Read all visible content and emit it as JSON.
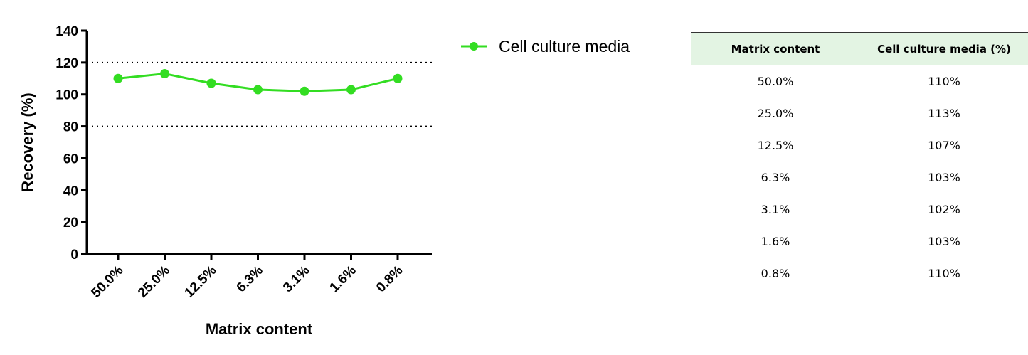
{
  "chart_data": {
    "type": "line",
    "categories": [
      "50.0%",
      "25.0%",
      "12.5%",
      "6.3%",
      "3.1%",
      "1.6%",
      "0.8%"
    ],
    "series": [
      {
        "name": "Cell culture media",
        "values": [
          110,
          113,
          107,
          103,
          102,
          103,
          110
        ],
        "color": "#33dd22"
      }
    ],
    "reference_lines": [
      80,
      120
    ],
    "xlabel": "Matrix content",
    "ylabel": "Recovery (%)",
    "ylim": [
      0,
      140
    ],
    "yticks": [
      0,
      20,
      40,
      60,
      80,
      100,
      120,
      140
    ],
    "legend_position": "right",
    "grid": false
  },
  "table": {
    "headers": [
      "Matrix content",
      "Cell culture media (%)"
    ],
    "rows": [
      [
        "50.0%",
        "110%"
      ],
      [
        "25.0%",
        "113%"
      ],
      [
        "12.5%",
        "107%"
      ],
      [
        "6.3%",
        "103%"
      ],
      [
        "3.1%",
        "102%"
      ],
      [
        "1.6%",
        "103%"
      ],
      [
        "0.8%",
        "110%"
      ]
    ],
    "header_color": "#e3f4e3"
  }
}
